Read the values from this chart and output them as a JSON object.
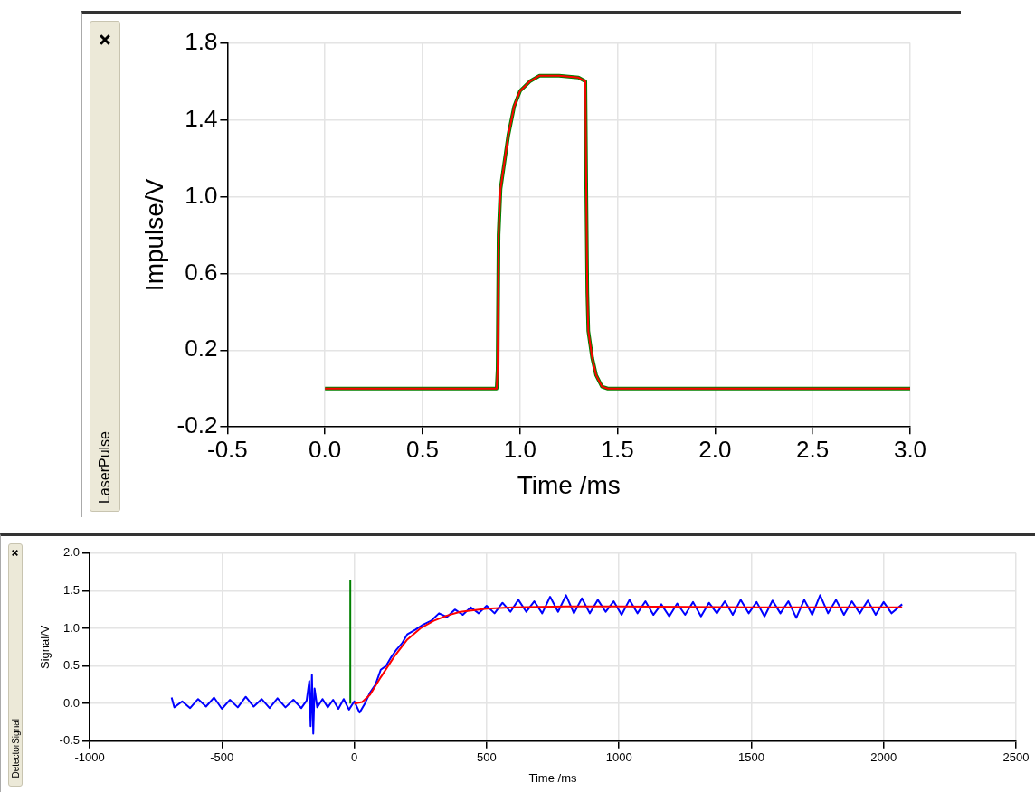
{
  "chart_data": [
    {
      "type": "line",
      "title": "LaserPulse",
      "xlabel": "Time /ms",
      "ylabel": "Impulse/V",
      "xlim": [
        -0.5,
        3.0
      ],
      "xticks": [
        -0.5,
        {
          "value": 0,
          "label": "0.0"
        },
        0.5,
        {
          "value": 1,
          "label": "1.0"
        },
        1.5,
        {
          "value": 2,
          "label": "2.0"
        },
        2.5,
        {
          "value": 3,
          "label": "3.0"
        }
      ],
      "ylim": [
        -0.2,
        1.8
      ],
      "yticks": [
        -0.2,
        0.2,
        0.6,
        {
          "value": 1,
          "label": "1.0"
        },
        1.4,
        1.8
      ],
      "grid": true,
      "legend": false,
      "marker": "none",
      "line_style": "solid",
      "series": [
        {
          "color": "#008000",
          "x": [
            0,
            0.88,
            0.885,
            0.89,
            0.9,
            0.92,
            0.94,
            0.97,
            1.0,
            1.05,
            1.1,
            1.2,
            1.3,
            1.335,
            1.34,
            1.345,
            1.35,
            1.37,
            1.39,
            1.42,
            1.45,
            3.0
          ],
          "values": [
            0,
            0,
            0.1,
            0.8,
            1.04,
            1.18,
            1.32,
            1.47,
            1.55,
            1.6,
            1.63,
            1.63,
            1.62,
            1.6,
            1.0,
            0.5,
            0.3,
            0.16,
            0.07,
            0.01,
            0,
            0
          ]
        },
        {
          "color": "#ff0000",
          "x": [
            0,
            0.88,
            0.885,
            0.89,
            0.9,
            0.92,
            0.94,
            0.97,
            1.0,
            1.05,
            1.1,
            1.2,
            1.3,
            1.335,
            1.34,
            1.345,
            1.35,
            1.37,
            1.39,
            1.42,
            1.45,
            3.0
          ],
          "values": [
            0,
            0,
            0.1,
            0.8,
            1.04,
            1.18,
            1.32,
            1.47,
            1.55,
            1.6,
            1.63,
            1.63,
            1.62,
            1.6,
            1.0,
            0.5,
            0.3,
            0.16,
            0.07,
            0.01,
            0,
            0
          ]
        }
      ]
    },
    {
      "type": "line",
      "title": "DetectorSignal",
      "xlabel": "Time /ms",
      "ylabel": "Signal/V",
      "xlim": [
        -1000,
        2500
      ],
      "xticks": [
        -1000,
        -500,
        0,
        500,
        1000,
        1500,
        2000,
        2500
      ],
      "ylim": [
        -0.5,
        2.0
      ],
      "yticks": [
        -0.5,
        {
          "value": 0,
          "label": "0.0"
        },
        0.5,
        {
          "value": 1,
          "label": "1.0"
        },
        1.5,
        {
          "value": 2,
          "label": "2.0"
        }
      ],
      "grid": true,
      "legend": false,
      "marker": "none",
      "line_style": "solid",
      "series": [
        {
          "color": "#0000ff",
          "x": [
            -690,
            -680,
            -650,
            -620,
            -590,
            -560,
            -530,
            -500,
            -470,
            -440,
            -410,
            -380,
            -350,
            -320,
            -290,
            -260,
            -230,
            -200,
            -180,
            -170,
            -165,
            -160,
            -155,
            -150,
            -140,
            -120,
            -100,
            -80,
            -60,
            -40,
            -20,
            0,
            20,
            40,
            60,
            80,
            100,
            120,
            140,
            160,
            180,
            200,
            230,
            260,
            290,
            320,
            350,
            380,
            410,
            440,
            470,
            500,
            530,
            560,
            590,
            620,
            650,
            680,
            710,
            740,
            770,
            800,
            830,
            860,
            890,
            920,
            950,
            980,
            1010,
            1040,
            1070,
            1100,
            1130,
            1160,
            1190,
            1220,
            1250,
            1280,
            1310,
            1340,
            1370,
            1400,
            1430,
            1460,
            1490,
            1520,
            1550,
            1580,
            1610,
            1640,
            1670,
            1700,
            1730,
            1760,
            1790,
            1820,
            1850,
            1880,
            1910,
            1940,
            1970,
            2000,
            2030,
            2070
          ],
          "values": [
            0.08,
            -0.05,
            0.03,
            -0.06,
            0.06,
            -0.04,
            0.08,
            -0.07,
            0.05,
            -0.05,
            0.09,
            -0.04,
            0.06,
            -0.06,
            0.07,
            -0.05,
            0.05,
            -0.06,
            0.04,
            0.3,
            -0.3,
            0.38,
            -0.4,
            0.2,
            -0.05,
            0.06,
            -0.05,
            0.05,
            -0.07,
            0.06,
            -0.08,
            0.03,
            -0.12,
            0.0,
            0.15,
            0.25,
            0.45,
            0.5,
            0.62,
            0.72,
            0.8,
            0.92,
            0.98,
            1.05,
            1.1,
            1.2,
            1.15,
            1.25,
            1.18,
            1.28,
            1.2,
            1.3,
            1.2,
            1.34,
            1.22,
            1.38,
            1.22,
            1.36,
            1.2,
            1.42,
            1.22,
            1.44,
            1.2,
            1.4,
            1.2,
            1.38,
            1.22,
            1.36,
            1.18,
            1.38,
            1.2,
            1.36,
            1.18,
            1.32,
            1.16,
            1.33,
            1.18,
            1.35,
            1.16,
            1.34,
            1.2,
            1.36,
            1.18,
            1.38,
            1.2,
            1.35,
            1.16,
            1.37,
            1.2,
            1.36,
            1.14,
            1.38,
            1.18,
            1.44,
            1.2,
            1.38,
            1.18,
            1.36,
            1.2,
            1.37,
            1.18,
            1.35,
            1.2,
            1.32
          ]
        },
        {
          "color": "#008000",
          "x": [
            -15,
            -15
          ],
          "values": [
            0,
            1.65
          ]
        },
        {
          "color": "#ff0000",
          "x": [
            0,
            30,
            60,
            100,
            150,
            200,
            250,
            300,
            350,
            400,
            500,
            600,
            800,
            1000,
            1500,
            2070
          ],
          "values": [
            0,
            0.02,
            0.12,
            0.35,
            0.62,
            0.85,
            1.0,
            1.1,
            1.17,
            1.22,
            1.26,
            1.28,
            1.29,
            1.29,
            1.28,
            1.28
          ]
        }
      ]
    }
  ]
}
